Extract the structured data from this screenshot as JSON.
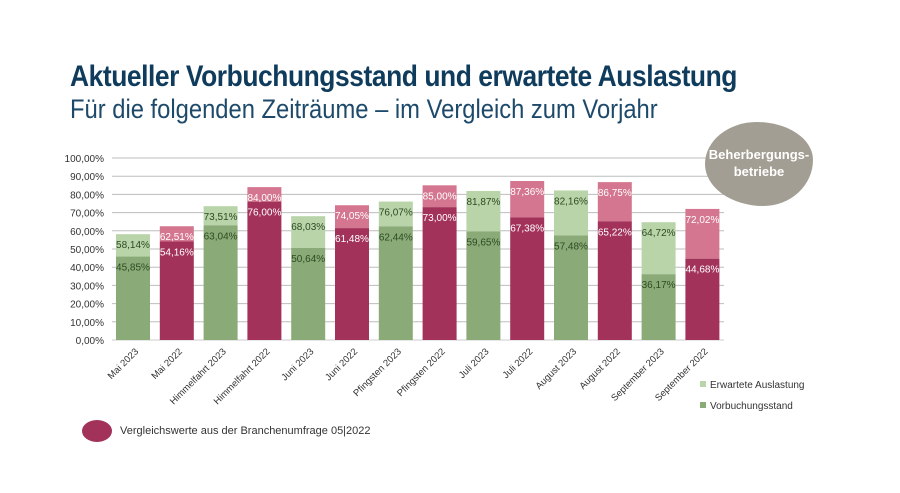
{
  "header": {
    "title": "Aktueller Vorbuchungsstand und erwartete Auslastung",
    "subtitle": "Für die folgenden Zeiträume – im Vergleich zum Vorjahr"
  },
  "badge": "Beherbergungs-\nbetriebe",
  "note": "Vergleichswerte aus der Branchenumfrage 05|2022",
  "colors": {
    "current_booking": "#8aab78",
    "current_expected": "#b8d4a8",
    "prev_booking": "#a3325a",
    "prev_expected": "#d4768f",
    "title": "#0f3b5c"
  },
  "chart_data": {
    "type": "bar",
    "stacked": "overlay",
    "categories": [
      "Mai 2023",
      "Mai 2022",
      "Himmelfahrt 2023",
      "Himmelfahrt 2022",
      "Juni 2023",
      "Juni 2022",
      "Pfingsten 2023",
      "Pfingsten 2022",
      "Juli 2023",
      "Juli 2022",
      "August 2023",
      "August 2022",
      "September 2023",
      "September 2022"
    ],
    "series": [
      {
        "name": "Vorbuchungsstand",
        "values": [
          45.85,
          54.16,
          63.04,
          76.0,
          50.64,
          61.48,
          62.44,
          73.0,
          59.65,
          67.38,
          57.48,
          65.22,
          36.17,
          44.68
        ]
      },
      {
        "name": "Erwartete Auslastung",
        "values": [
          58.14,
          62.51,
          73.51,
          84.0,
          68.03,
          74.05,
          76.07,
          85.0,
          81.87,
          87.36,
          82.16,
          86.75,
          64.72,
          72.02
        ]
      }
    ],
    "ylim": [
      0,
      100
    ],
    "yticks": [
      "0,00%",
      "10,00%",
      "20,00%",
      "30,00%",
      "40,00%",
      "50,00%",
      "60,00%",
      "70,00%",
      "80,00%",
      "90,00%",
      "100,00%"
    ],
    "grid": true,
    "legend": "bottom-right"
  }
}
